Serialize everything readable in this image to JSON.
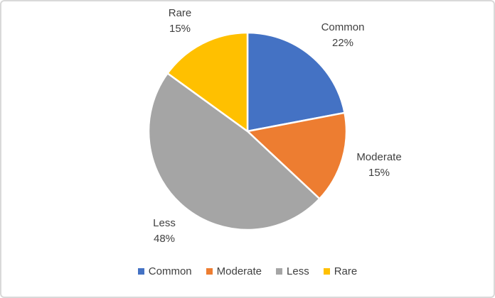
{
  "chart_data": {
    "type": "pie",
    "title": "",
    "categories": [
      "Common",
      "Moderate",
      "Less",
      "Rare"
    ],
    "values": [
      22,
      15,
      48,
      15
    ],
    "total": 100,
    "unit": "%",
    "colors": [
      "#4472C4",
      "#ED7D31",
      "#A5A5A5",
      "#FFC000"
    ],
    "start_angle_deg": 0,
    "direction": "clockwise",
    "data_labels": [
      {
        "category": "Common",
        "percent": "22%"
      },
      {
        "category": "Moderate",
        "percent": "15%"
      },
      {
        "category": "Less",
        "percent": "48%"
      },
      {
        "category": "Rare",
        "percent": "15%"
      }
    ],
    "legend": {
      "position": "bottom",
      "entries": [
        "Common",
        "Moderate",
        "Less",
        "Rare"
      ]
    }
  },
  "styles": {
    "label_text_color": "#404040",
    "slice_separator_color": "#FFFFFF",
    "frame_border_color": "#D9D9D9",
    "background_color": "#FFFFFF"
  }
}
